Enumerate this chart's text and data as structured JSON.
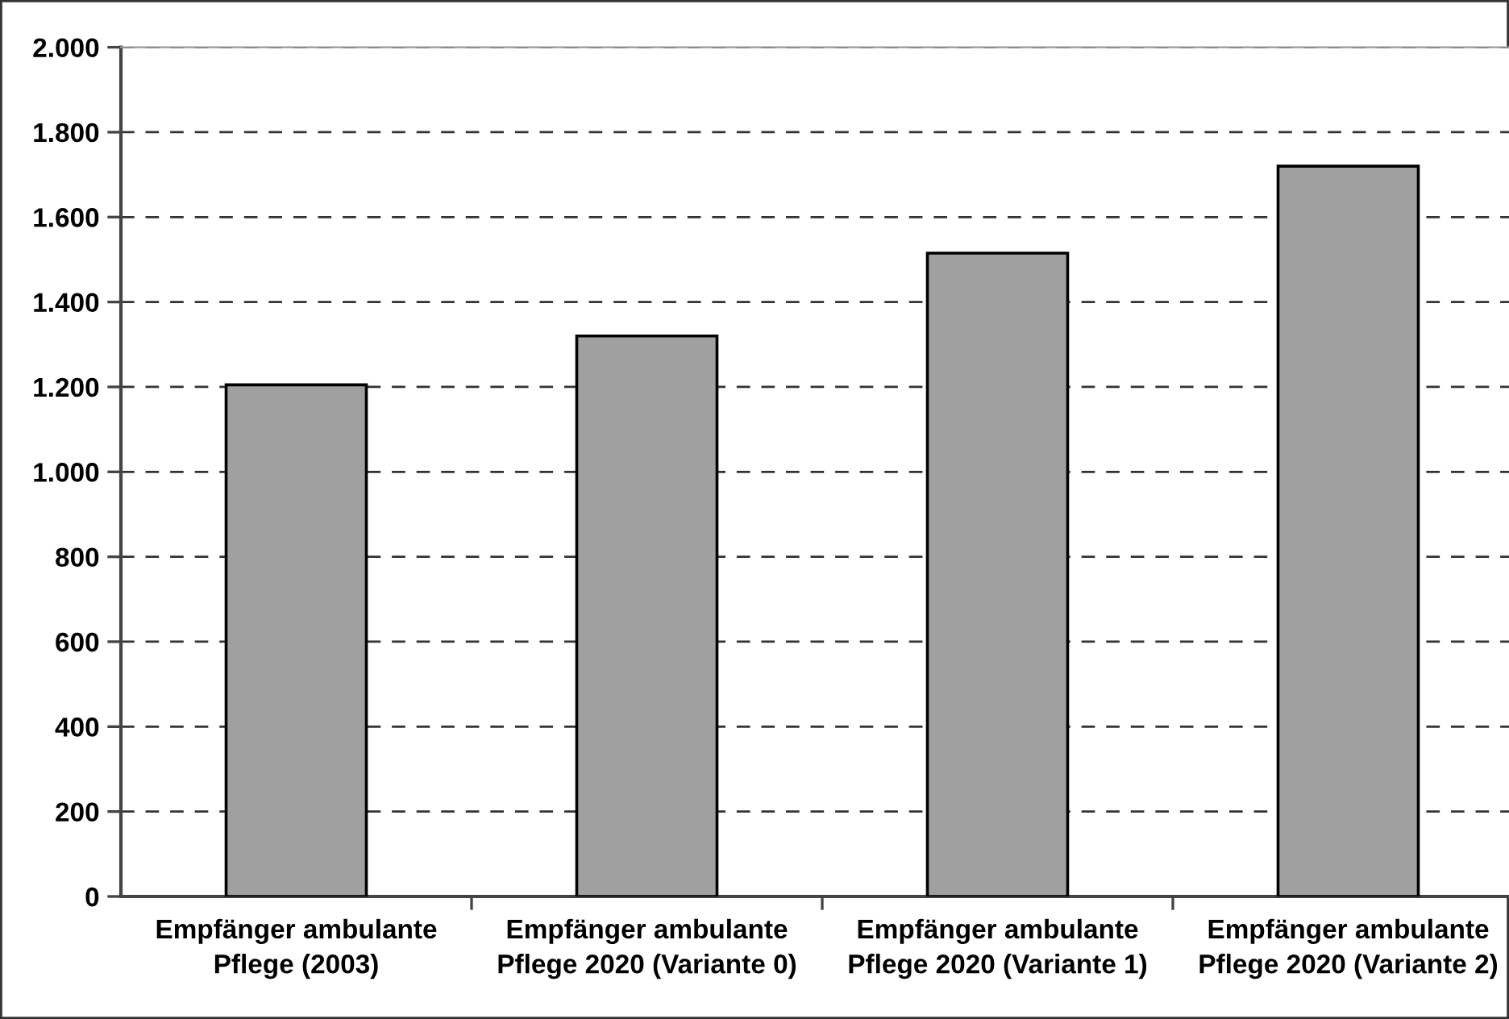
{
  "chart_data": {
    "type": "bar",
    "categories": [
      "Empfänger ambulante\nPflege (2003)",
      "Empfänger ambulante\nPflege 2020 (Variante 0)",
      "Empfänger ambulante\nPflege 2020 (Variante 1)",
      "Empfänger ambulante\nPflege 2020 (Variante 2)"
    ],
    "values": [
      1205,
      1320,
      1515,
      1720
    ],
    "color": "#a0a0a0",
    "ylim": [
      0,
      2000
    ],
    "yticks": [
      0,
      200,
      400,
      600,
      800,
      {
        "value": 1000,
        "label": "1.000"
      },
      {
        "value": 1200,
        "label": "1.200"
      },
      {
        "value": 1400,
        "label": "1.400"
      },
      {
        "value": 1600,
        "label": "1.600"
      },
      {
        "value": 1800,
        "label": "1.800"
      },
      {
        "value": 2000,
        "label": "2.000"
      }
    ],
    "grid": "y",
    "legend": false
  }
}
